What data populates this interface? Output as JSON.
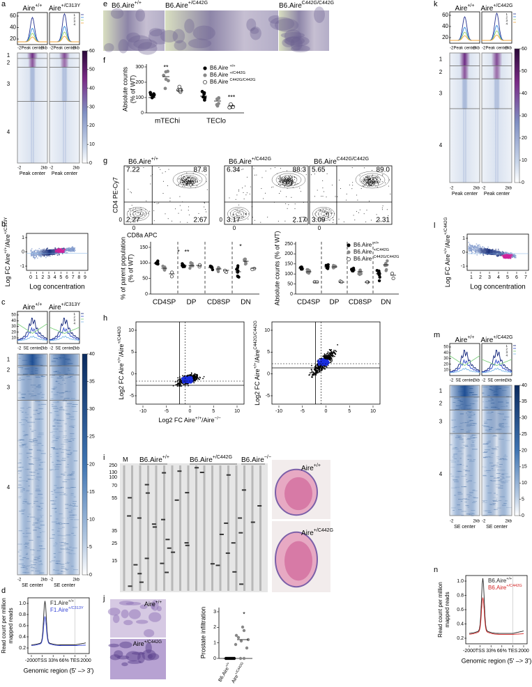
{
  "a": {
    "letter": "a",
    "headers": [
      [
        "Aire",
        "+/+"
      ],
      [
        "Aire",
        "+/C313Y"
      ]
    ],
    "profile_yticks": [
      "60",
      "40",
      "20"
    ],
    "legend": [
      "1",
      "2",
      "3",
      "4"
    ],
    "x_labels": [
      "-2",
      "Peak center",
      "2kb"
    ],
    "clusters": [
      "1",
      "2",
      "3",
      "4"
    ],
    "colorbar_ticks": [
      "60",
      "50",
      "40",
      "30",
      "20",
      "10",
      "0"
    ]
  },
  "b": {
    "letter": "b",
    "ylabel": [
      "Log FC Aire",
      "+/+",
      "/Aire",
      "+/C313Y"
    ],
    "yticks": [
      "1",
      "0",
      "-1"
    ],
    "xticks": [
      "0",
      "1",
      "2",
      "3",
      "4",
      "5",
      "6",
      "7",
      "8",
      "9"
    ],
    "xlabel": "Log concentration"
  },
  "c": {
    "letter": "c",
    "headers": [
      [
        "Aire",
        "+/+"
      ],
      [
        "Aire",
        "+/C313Y"
      ]
    ],
    "profile_yticks": [
      "50",
      "40",
      "30",
      "20",
      "10"
    ],
    "legend": [
      "1",
      "2",
      "3",
      "4"
    ],
    "x_labels": [
      "-2",
      "SE center",
      "2kb"
    ],
    "clusters": [
      "1",
      "2",
      "3",
      "4"
    ],
    "colorbar_ticks": [
      "40",
      "35",
      "30",
      "25",
      "20",
      "15",
      "10",
      "5",
      "0"
    ]
  },
  "d": {
    "letter": "d",
    "yticks": [
      "1.0",
      "0.8",
      "0.6",
      "0.4",
      "0.2"
    ],
    "ylabel_lines": [
      "Read count per million",
      "mapped reads"
    ],
    "legend": [
      [
        "F1.Aire",
        "+/+"
      ],
      [
        "F1.Aire",
        "+/C313Y"
      ]
    ],
    "xticks": [
      "-2000",
      "TSS",
      "33%",
      "66%",
      "TES",
      "2000"
    ],
    "xlabel": "Genomic region (5' –> 3')"
  },
  "e": {
    "letter": "e",
    "headers": [
      [
        "B6.Aire",
        "+/+"
      ],
      [
        "B6.Aire",
        "+/C442G"
      ],
      [
        "B6.Aire",
        "C442G/C442G"
      ]
    ]
  },
  "f": {
    "letter": "f",
    "ylabel_lines": [
      "Absolute counts",
      "(% of WT)"
    ],
    "yticks": [
      "300",
      "200",
      "100",
      "0"
    ],
    "categories": [
      "mTEChi",
      "TEClo"
    ],
    "legend": [
      [
        "B6.Aire ",
        "+/+"
      ],
      [
        "B6.Aire ",
        "+/C442G"
      ],
      [
        "B6.Aire ",
        "C442G/C442G"
      ]
    ],
    "stars": [
      "**",
      "***"
    ]
  },
  "g": {
    "letter": "g",
    "headers": [
      [
        "B6.Aire",
        "+/+"
      ],
      [
        "B6.Aire",
        "+/C442G"
      ],
      [
        "B6.Aire",
        "C442G/C442G"
      ]
    ],
    "quadrants": [
      [
        "7.22",
        "87.8",
        "2.27",
        "2.67"
      ],
      [
        "6.34",
        "88.3",
        "3.17",
        "2.17"
      ],
      [
        "5.65",
        "89.0",
        "3.09",
        "2.31"
      ]
    ],
    "ylabel": "CD4 PE-Cy7",
    "xlabel": "CD8a APC",
    "zero": "0",
    "left": {
      "ylabel_lines": [
        "% of parent population",
        "(% of WT)"
      ],
      "yticks": [
        "150",
        "100",
        "50",
        "0"
      ],
      "categories": [
        "CD4SP",
        "DP",
        "CD8SP",
        "DN"
      ],
      "stars": [
        "*",
        "**",
        "*"
      ]
    },
    "right": {
      "ylabel": "Absolute counts (% of WT)",
      "yticks": [
        "250",
        "200",
        "150",
        "100",
        "50",
        "0"
      ],
      "categories": [
        "CD4SP",
        "DP",
        "CD8SP",
        "DN"
      ],
      "legend": [
        [
          "B6.Aire ",
          "+/+"
        ],
        [
          "B6.Aire ",
          "+/C442G"
        ],
        [
          "B6.Aire ",
          "C442G/C442G"
        ]
      ]
    }
  },
  "h": {
    "letter": "h",
    "plots": [
      {
        "ylabel": [
          "Log2 FC Aire",
          "+/+",
          "/Aire",
          "+/C442G"
        ]
      },
      {
        "ylabel": [
          "Log2 FC Aire",
          "+/+",
          "/Aire",
          "C442G/C442G"
        ]
      }
    ],
    "xlabel": [
      "Log2 FC Aire",
      "+/+",
      "/Aire",
      "−/−"
    ],
    "xticks": [
      "-10",
      "-5",
      "0",
      "5",
      "10"
    ],
    "yticks": [
      "10",
      "5",
      "0",
      "-5"
    ]
  },
  "i": {
    "letter": "i",
    "marker": "M",
    "lanes": [
      [
        "B6.Aire",
        "+/+"
      ],
      [
        "B6.Aire",
        "+/C442G"
      ],
      [
        "B6.Aire",
        "−/−"
      ]
    ],
    "ladder": [
      "250",
      "130",
      "100",
      "70",
      "55",
      "35",
      "25",
      "15"
    ],
    "images": [
      [
        "Aire",
        "+/+"
      ],
      [
        "Aire",
        "+/C442G"
      ]
    ]
  },
  "j": {
    "letter": "j",
    "images": [
      [
        "Aire",
        "+/+"
      ],
      [
        "Aire",
        "+/C442G"
      ]
    ],
    "ylabel": "Prostate infiltration",
    "yticks": [
      "3",
      "2",
      "1",
      "0"
    ],
    "categories": [
      [
        "B6.Aire",
        "+/+"
      ],
      [
        "B6.Aire",
        "+/C442G"
      ]
    ],
    "star": "*"
  },
  "k": {
    "letter": "k",
    "headers": [
      [
        "Aire",
        "+/+"
      ],
      [
        "Aire",
        "+/C442G"
      ]
    ],
    "profile_yticks": [
      "60",
      "40",
      "20"
    ],
    "legend": [
      "1",
      "2",
      "3",
      "4"
    ],
    "x_labels": [
      "-2",
      "Peak center",
      "2kb"
    ],
    "clusters": [
      "1",
      "2",
      "3",
      "4"
    ],
    "colorbar_ticks": [
      "60",
      "50",
      "40",
      "30",
      "20",
      "10",
      "0"
    ]
  },
  "l": {
    "letter": "l",
    "ylabel": [
      "Log FC Aire",
      "+/+",
      "/Aire",
      "+/C442G"
    ],
    "yticks": [
      "1",
      "0",
      "-1"
    ],
    "xticks": [
      "1",
      "2",
      "3",
      "4",
      "5",
      "6",
      "7"
    ],
    "xlabel": "Log concentration"
  },
  "m": {
    "letter": "m",
    "headers": [
      [
        "Aire",
        "+/+"
      ],
      [
        "Aire",
        "+/C442G"
      ]
    ],
    "profile_yticks": [
      "50",
      "40",
      "30",
      "20",
      "10"
    ],
    "legend": [
      "1",
      "2",
      "3",
      "4"
    ],
    "x_labels": [
      "-2",
      "SE center",
      "2kb"
    ],
    "clusters": [
      "1",
      "2",
      "3",
      "4"
    ],
    "colorbar_ticks": [
      "40",
      "35",
      "30",
      "25",
      "20",
      "15",
      "10",
      "5",
      "0"
    ]
  },
  "n": {
    "letter": "n",
    "yticks": [
      "1.0",
      "0.8",
      "0.6",
      "0.4",
      "0.2"
    ],
    "ylabel_lines": [
      "Read count per million",
      "mapped reads"
    ],
    "legend": [
      [
        "B6.Aire",
        "+/+"
      ],
      [
        "B6.Aire",
        "+/C442G"
      ]
    ],
    "xticks": [
      "-2000",
      "TSS",
      "33%",
      "66%",
      "TES",
      "2000"
    ],
    "xlabel": "Genomic region (5' –> 3')"
  }
}
